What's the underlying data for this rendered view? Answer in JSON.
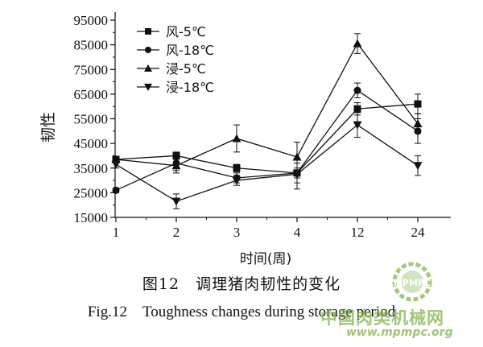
{
  "chart_data": {
    "type": "line",
    "title": "",
    "xlabel": "时间(周)",
    "ylabel": "韧性",
    "categories": [
      "1",
      "2",
      "3",
      "4",
      "12",
      "24"
    ],
    "ylim": [
      15000,
      95000
    ],
    "yticks": [
      15000,
      25000,
      35000,
      45000,
      55000,
      65000,
      75000,
      85000,
      95000
    ],
    "grid": false,
    "legend_position": "top-left",
    "series": [
      {
        "name": "风-5℃",
        "marker": "square",
        "values": [
          38500,
          40000,
          35000,
          33000,
          59000,
          61000
        ],
        "errors": [
          800,
          1500,
          1500,
          2000,
          2500,
          4000
        ]
      },
      {
        "name": "风-18℃",
        "marker": "circle",
        "values": [
          26000,
          37000,
          31000,
          33000,
          66500,
          50000
        ],
        "errors": [
          1000,
          3000,
          2000,
          4000,
          3000,
          5000
        ]
      },
      {
        "name": "浸-5℃",
        "marker": "triangle-up",
        "values": [
          38500,
          36000,
          47000,
          39500,
          85500,
          53000
        ],
        "errors": [
          1000,
          3000,
          5500,
          6000,
          4000,
          4000
        ]
      },
      {
        "name": "浸-18℃",
        "marker": "triangle-down",
        "values": [
          36500,
          21500,
          30000,
          32500,
          52500,
          36000
        ],
        "errors": [
          1500,
          3000,
          2000,
          6000,
          5000,
          4000
        ]
      }
    ]
  },
  "caption_cn": "图12　调理猪肉韧性的变化",
  "caption_en": "Fig.12　Toughness changes during storage period",
  "watermark": {
    "site_name": "中国肉类机械网",
    "logo_text": "MPMPC",
    "url": "www.mpmpc.org",
    "color": "#7fb24a"
  }
}
